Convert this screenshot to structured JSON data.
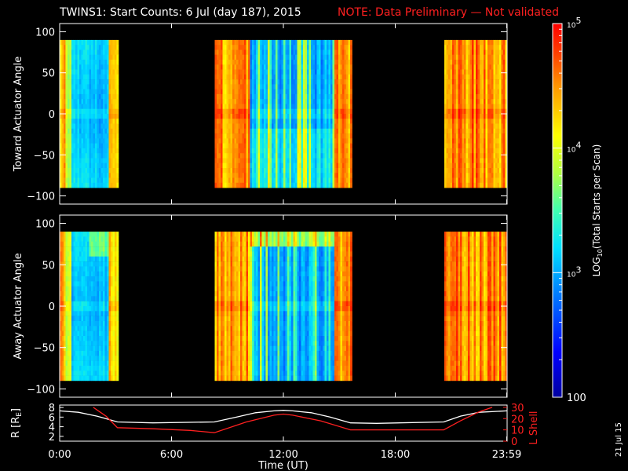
{
  "title": "TWINS1: Start Counts:  6 Jul (day 187), 2015",
  "note": "NOTE: Data Preliminary — Not validated",
  "stamp": "21 Jul 15",
  "colors": {
    "note": "#ff2020",
    "lshell": "#ff2020",
    "r": "#ffffff",
    "frame": "#ffffff"
  },
  "chart_data": [
    {
      "type": "heatmap",
      "ylabel": "Toward Actuator Angle",
      "ylim": [
        -110,
        110
      ],
      "yticks": [
        "100",
        "50",
        "0",
        "−50",
        "−100"
      ],
      "ytick_values": [
        100,
        50,
        0,
        -50,
        -100
      ],
      "angle_range": [
        -90,
        90
      ],
      "data_intervals_hours": [
        [
          0,
          3.1
        ],
        [
          8.3,
          15.6
        ],
        [
          20.6,
          24
        ]
      ],
      "profile": "toward"
    },
    {
      "type": "heatmap",
      "ylabel": "Away Actuator Angle",
      "ylim": [
        -110,
        110
      ],
      "yticks": [
        "100",
        "50",
        "0",
        "−50",
        "−100"
      ],
      "ytick_values": [
        100,
        50,
        0,
        -50,
        -100
      ],
      "angle_range": [
        -90,
        90
      ],
      "data_intervals_hours": [
        [
          0,
          3.1
        ],
        [
          8.3,
          15.6
        ],
        [
          20.6,
          24
        ]
      ],
      "profile": "away"
    },
    {
      "type": "line",
      "xlabel": "Time (UT)",
      "xticks": [
        "0:00",
        "6:00",
        "12:00",
        "18:00",
        "23:59"
      ],
      "xtick_values": [
        0,
        6,
        12,
        18,
        23.98
      ],
      "xlim": [
        0,
        24
      ],
      "ylabel_left": "R [R",
      "ylabel_left_sub": "E",
      "ylabel_left_end": "]",
      "ylim_left": [
        1,
        8.5
      ],
      "yticks_left": [
        "8",
        "6",
        "4",
        "2"
      ],
      "ytick_values_left": [
        8,
        6,
        4,
        2
      ],
      "ylabel_right": "L Shell",
      "ylim_right": [
        0,
        32
      ],
      "yticks_right": [
        "30",
        "20",
        "10",
        "0"
      ],
      "ytick_values_right": [
        30,
        20,
        10,
        0
      ],
      "series": [
        {
          "axis": "left",
          "color": "#ffffff",
          "x": [
            0,
            1,
            2,
            3.1,
            5,
            8.3,
            9.5,
            10.5,
            11.5,
            12,
            12.5,
            13.5,
            14.5,
            15.6,
            17,
            20.6,
            21.5,
            22.5,
            23.98
          ],
          "y": [
            7.3,
            7.0,
            6.2,
            5.0,
            4.8,
            5.0,
            6.0,
            6.9,
            7.3,
            7.4,
            7.3,
            6.9,
            6.0,
            4.8,
            4.7,
            5.0,
            6.2,
            7.0,
            7.3
          ]
        },
        {
          "axis": "right",
          "color": "#ff2020",
          "x": [
            1.8,
            2.5,
            3.1,
            5,
            7,
            8.3,
            10,
            11.5,
            12,
            12.5,
            14,
            15.6,
            17,
            19,
            20.6,
            21.5,
            22.5,
            23.2
          ],
          "y": [
            30,
            22,
            12,
            11,
            9.5,
            7.5,
            17,
            23,
            24,
            23,
            18,
            10,
            10,
            10,
            10,
            18,
            26,
            30
          ]
        }
      ]
    },
    {
      "type": "heatmap",
      "name": "colorbar",
      "label": "LOG",
      "label_sub": "10",
      "label_end": "(Total Starts per Scan)",
      "zlim": [
        100,
        100000
      ],
      "ticks": [
        {
          "value": 100000,
          "base": "10",
          "exp": "5"
        },
        {
          "value": 10000,
          "base": "10",
          "exp": "4"
        },
        {
          "value": 1000,
          "base": "10",
          "exp": "3"
        },
        {
          "value": 100,
          "text": "100"
        }
      ]
    }
  ]
}
